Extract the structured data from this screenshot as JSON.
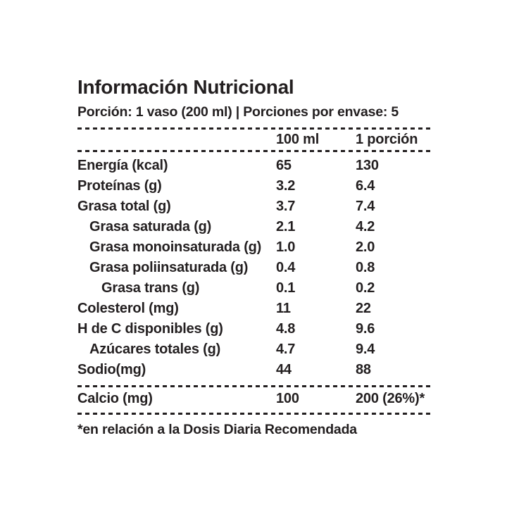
{
  "label": {
    "title": "Información Nutricional",
    "subtitle": "Porción: 1 vaso (200 ml) | Porciones por envase: 5",
    "columns": [
      "100 ml",
      "1 porción"
    ],
    "rows": [
      {
        "name": "Energía (kcal)",
        "indent": 0,
        "per_100ml": "65",
        "per_porcion": "130"
      },
      {
        "name": "Proteínas (g)",
        "indent": 0,
        "per_100ml": "3.2",
        "per_porcion": "6.4"
      },
      {
        "name": "Grasa total (g)",
        "indent": 0,
        "per_100ml": "3.7",
        "per_porcion": "7.4"
      },
      {
        "name": "Grasa saturada (g)",
        "indent": 1,
        "per_100ml": "2.1",
        "per_porcion": "4.2"
      },
      {
        "name": "Grasa monoinsaturada (g)",
        "indent": 1,
        "per_100ml": "1.0",
        "per_porcion": "2.0"
      },
      {
        "name": "Grasa poliinsaturada (g)",
        "indent": 1,
        "per_100ml": "0.4",
        "per_porcion": "0.8"
      },
      {
        "name": "Grasa trans (g)",
        "indent": 2,
        "per_100ml": "0.1",
        "per_porcion": "0.2"
      },
      {
        "name": "Colesterol (mg)",
        "indent": 0,
        "per_100ml": "11",
        "per_porcion": "22"
      },
      {
        "name": "H de C disponibles (g)",
        "indent": 0,
        "per_100ml": "4.8",
        "per_porcion": "9.6"
      },
      {
        "name": "Azúcares totales (g)",
        "indent": 1,
        "per_100ml": "4.7",
        "per_porcion": "9.4"
      },
      {
        "name": "Sodio(mg)",
        "indent": 0,
        "per_100ml": "44",
        "per_porcion": "88"
      }
    ],
    "calcium_row": {
      "name": "Calcio (mg)",
      "per_100ml": "100",
      "per_porcion": "200 (26%)*"
    },
    "footnote": "*en relación a la Dosis Diaria Recomendada",
    "colors": {
      "text": "#231f20",
      "background": "#ffffff"
    }
  }
}
